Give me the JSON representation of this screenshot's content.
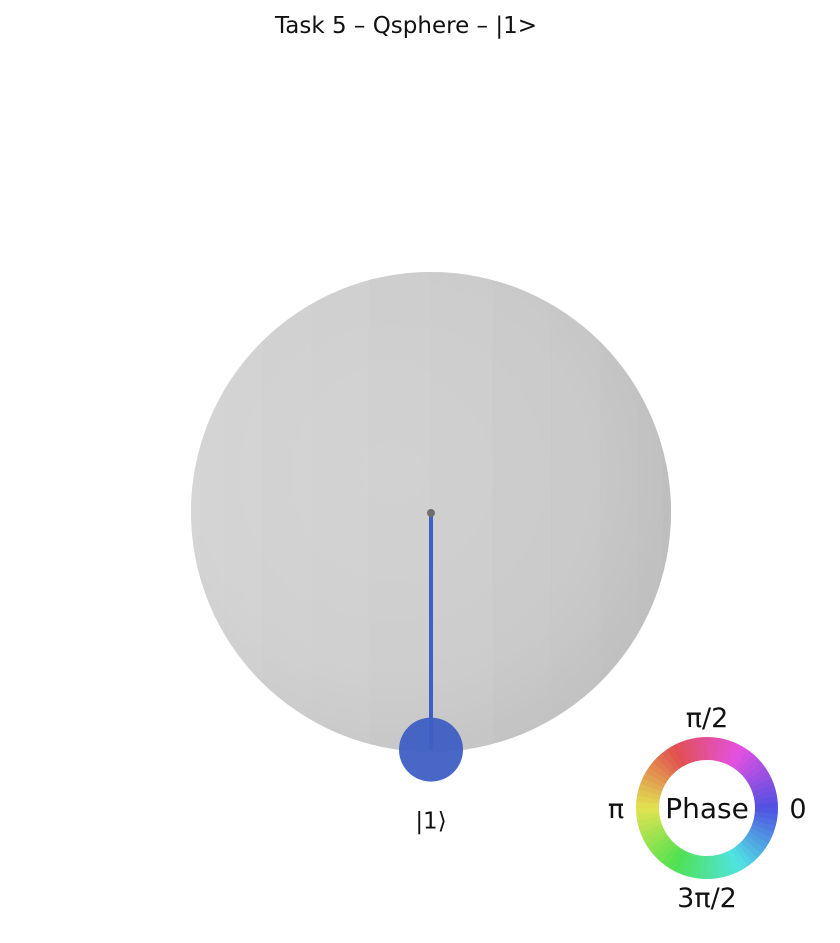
{
  "title": "Task 5 – Qsphere – |1>",
  "chart_data": {
    "type": "qsphere",
    "title": "Task 5 – Qsphere – |1>",
    "states": [
      {
        "label": "|1⟩",
        "amplitude": 1.0,
        "probability": 1.0,
        "phase": 0,
        "color": "#3f5fc4",
        "position": "south pole"
      }
    ],
    "sphere_color": "#cdcdcd",
    "center_dot_color": "#6f6f6f",
    "phase_legend": {
      "label": "Phase",
      "ticks": [
        "0",
        "π/2",
        "π",
        "3π/2"
      ],
      "placement": "bottom-right"
    }
  }
}
